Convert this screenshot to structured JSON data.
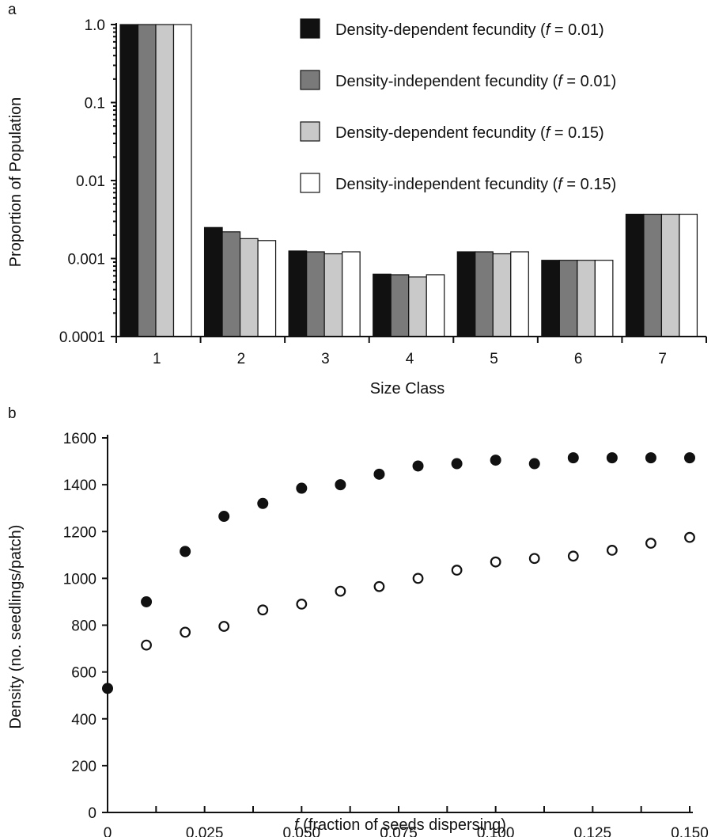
{
  "colors": {
    "black": "#111111",
    "dark_gray": "#7a7a7a",
    "light_gray": "#c9c9c9",
    "white": "#ffffff",
    "axis": "#111111"
  },
  "chart_data": [
    {
      "panel": "a",
      "type": "bar",
      "xlabel": "Size Class",
      "ylabel": "Proportion of Population",
      "yscale": "log",
      "ylim": [
        0.0001,
        1.0
      ],
      "yticks": [
        "0.0001",
        "0.001",
        "0.01",
        "0.1",
        "1.0"
      ],
      "categories": [
        "1",
        "2",
        "3",
        "4",
        "5",
        "6",
        "7"
      ],
      "legend_position": "top-right",
      "series": [
        {
          "name_pre": "Density-dependent fecundity (",
          "name_f": "f",
          "name_post": " = 0.01)",
          "fill": "black",
          "values": [
            1.0,
            0.0025,
            0.00125,
            0.00063,
            0.00122,
            0.00095,
            0.0037
          ]
        },
        {
          "name_pre": "Density-independent fecundity (",
          "name_f": "f",
          "name_post": " = 0.01)",
          "fill": "dark_gray",
          "values": [
            1.0,
            0.0022,
            0.00122,
            0.00062,
            0.00122,
            0.00095,
            0.0037
          ]
        },
        {
          "name_pre": "Density-dependent fecundity (",
          "name_f": "f",
          "name_post": " = 0.15)",
          "fill": "light_gray",
          "values": [
            1.0,
            0.0018,
            0.00115,
            0.00058,
            0.00115,
            0.00095,
            0.0037
          ]
        },
        {
          "name_pre": "Density-independent fecundity (",
          "name_f": "f",
          "name_post": " = 0.15)",
          "fill": "white",
          "values": [
            1.0,
            0.0017,
            0.00122,
            0.00062,
            0.00122,
            0.00095,
            0.0037
          ]
        }
      ]
    },
    {
      "panel": "b",
      "type": "scatter",
      "xlabel_f": "f",
      "xlabel_rest": " (fraction of seeds dispersing)",
      "ylabel": "Density (no. seedlings/patch)",
      "xlim": [
        0,
        0.15
      ],
      "ylim": [
        0,
        1600
      ],
      "xticks": [
        "0",
        "0.025",
        "0.050",
        "0.075",
        "0.100",
        "0.125",
        "0.150"
      ],
      "yticks": [
        "0",
        "200",
        "400",
        "600",
        "800",
        "1000",
        "1200",
        "1400",
        "1600"
      ],
      "series": [
        {
          "marker": "filled-circle",
          "points": [
            [
              0,
              530
            ],
            [
              0.01,
              900
            ],
            [
              0.02,
              1115
            ],
            [
              0.03,
              1265
            ],
            [
              0.04,
              1320
            ],
            [
              0.05,
              1385
            ],
            [
              0.06,
              1400
            ],
            [
              0.07,
              1445
            ],
            [
              0.08,
              1480
            ],
            [
              0.09,
              1490
            ],
            [
              0.1,
              1505
            ],
            [
              0.11,
              1490
            ],
            [
              0.12,
              1515
            ],
            [
              0.13,
              1515
            ],
            [
              0.14,
              1515
            ],
            [
              0.15,
              1515
            ]
          ]
        },
        {
          "marker": "open-circle",
          "points": [
            [
              0.01,
              715
            ],
            [
              0.02,
              770
            ],
            [
              0.03,
              795
            ],
            [
              0.04,
              865
            ],
            [
              0.05,
              890
            ],
            [
              0.06,
              945
            ],
            [
              0.07,
              965
            ],
            [
              0.08,
              1000
            ],
            [
              0.09,
              1035
            ],
            [
              0.1,
              1070
            ],
            [
              0.11,
              1085
            ],
            [
              0.12,
              1095
            ],
            [
              0.13,
              1120
            ],
            [
              0.14,
              1150
            ],
            [
              0.15,
              1175
            ]
          ]
        }
      ]
    }
  ]
}
